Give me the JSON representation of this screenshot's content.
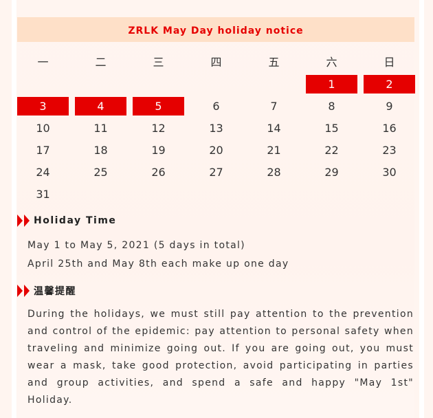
{
  "title": "ZRLK May Day holiday notice",
  "weekdays": [
    "一",
    "二",
    "三",
    "四",
    "五",
    "六",
    "日"
  ],
  "calendar": {
    "rows": [
      [
        null,
        null,
        null,
        null,
        null,
        "1",
        "2"
      ],
      [
        "3",
        "4",
        "5",
        "6",
        "7",
        "8",
        "9"
      ],
      [
        "10",
        "11",
        "12",
        "13",
        "14",
        "15",
        "16"
      ],
      [
        "17",
        "18",
        "19",
        "20",
        "21",
        "22",
        "23"
      ],
      [
        "24",
        "25",
        "26",
        "27",
        "28",
        "29",
        "30"
      ],
      [
        "31",
        null,
        null,
        null,
        null,
        null,
        null
      ]
    ],
    "holidays": [
      "1",
      "2",
      "3",
      "4",
      "5"
    ],
    "holiday_color": "#e50000"
  },
  "holiday_time": {
    "heading": "Holiday Time",
    "line1": "May 1 to May 5, 2021 (5 days in total)",
    "line2": "April 25th and May 8th each make up one day"
  },
  "reminder": {
    "heading": "温馨提醒",
    "text": "During the holidays, we must still pay attention to the prevention and control of the epidemic: pay attention to personal safety when traveling and minimize going out. If you are going out, you must wear a mask, take good protection, avoid participating in parties and group activities, and spend a safe and happy \"May 1st\" Holiday."
  }
}
